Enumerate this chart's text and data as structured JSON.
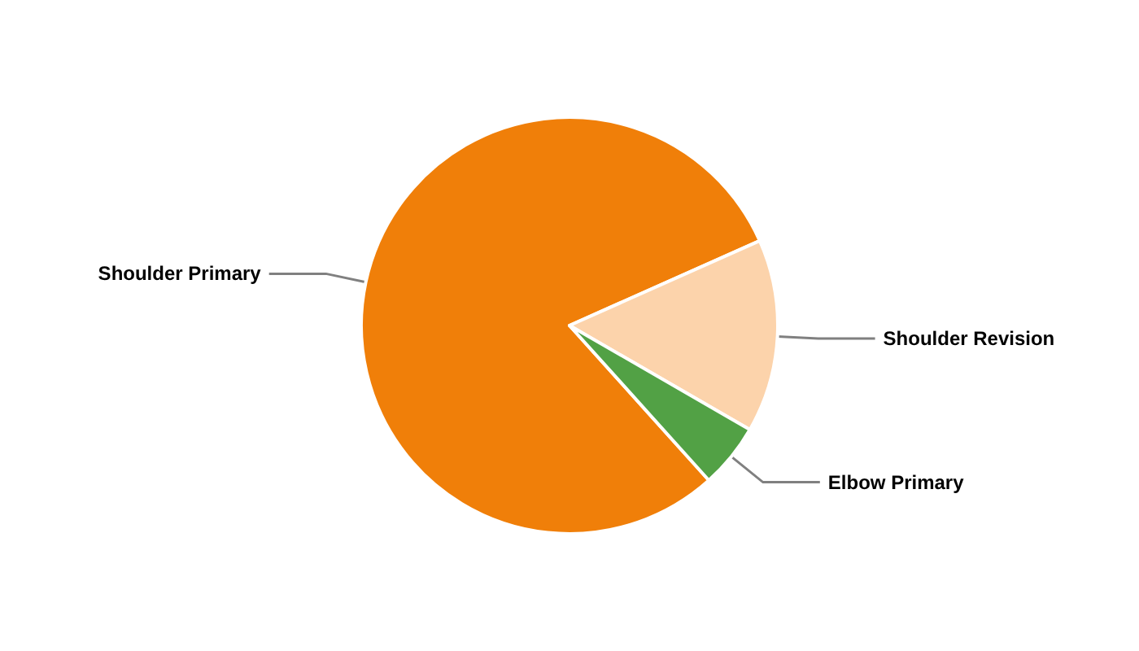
{
  "chart_data": {
    "type": "pie",
    "categories": [
      "Shoulder Primary",
      "Shoulder Revision",
      "Elbow Primary"
    ],
    "values": [
      80,
      15,
      5
    ],
    "colors": [
      "#f07f09",
      "#fcd3ab",
      "#52a145"
    ]
  }
}
